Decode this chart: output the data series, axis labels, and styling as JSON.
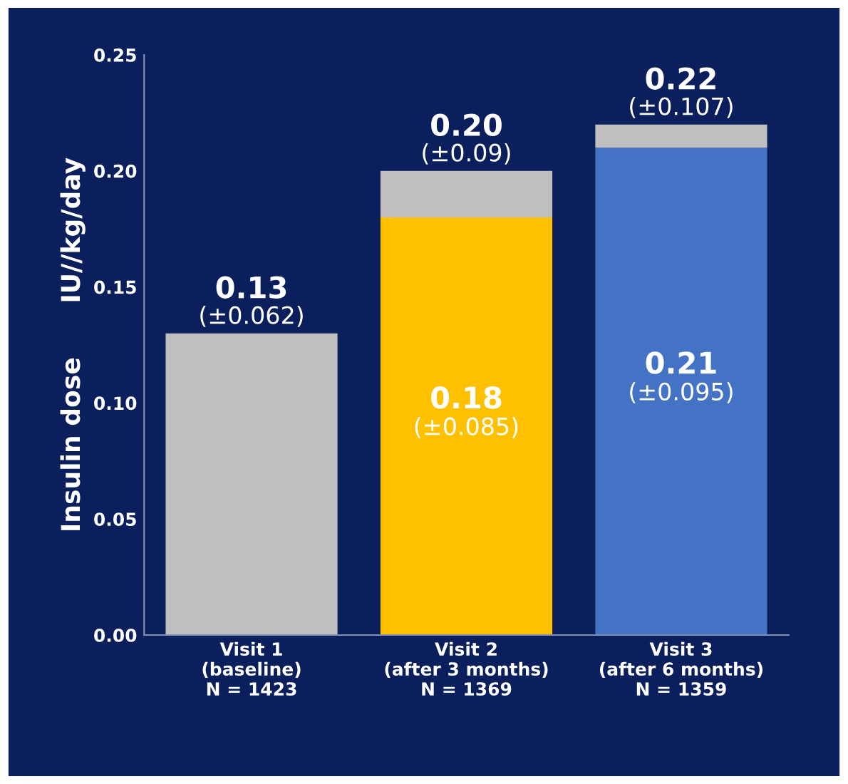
{
  "chart_data": {
    "type": "bar",
    "stacked": true,
    "ylabel": "Insulin dose      IU//kg/day",
    "categories": [
      "Visit 1\n(baseline)\nN = 1423",
      "Visit 2\n(after 3 months)\nN = 1369",
      "Visit 3\n(after 6 months)\nN = 1359"
    ],
    "series": [
      {
        "colors": [
          "#bfbfbf",
          "#ffc000",
          "#4472c4"
        ],
        "values": [
          0.13,
          0.18,
          0.21
        ],
        "value_labels": [
          null,
          "0.18\n(±0.085)",
          "0.21\n(±0.095)"
        ]
      },
      {
        "color": "#bfbfbf",
        "values": [
          null,
          0.02,
          0.01
        ]
      }
    ],
    "totals": [
      "0.13\n(±0.062)",
      "0.20\n(±0.09)",
      "0.22\n(±0.107)"
    ],
    "ylim": [
      0,
      0.25
    ],
    "yticks": [
      {
        "value": 0,
        "label": "0.00"
      },
      {
        "value": 0.05,
        "label": "0.05"
      },
      {
        "value": 0.1,
        "label": "0.10"
      },
      {
        "value": 0.15,
        "label": "0.15"
      },
      {
        "value": 0.2,
        "label": "0.20"
      },
      {
        "value": 0.25,
        "label": "0.25"
      }
    ],
    "grid": false,
    "legend": false
  }
}
